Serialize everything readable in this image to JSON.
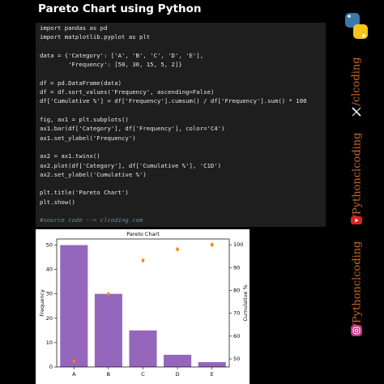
{
  "header": {
    "title": "Pareto Chart using Python"
  },
  "code": [
    [
      "import pandas as pd",
      "import matplotlib.pyplot as plt"
    ],
    [
      "data = {'Category': ['A', 'B', 'C', 'D', 'E'],",
      "        'Frequency': [50, 30, 15, 5, 2]}"
    ],
    [
      "df = pd.DataFrame(data)",
      "df = df.sort_values('Frequency', ascending=False)",
      "df['Cumulative %'] = df['Frequency'].cumsum() / df['Frequency'].sum() * 100"
    ],
    [
      "fig, ax1 = plt.subplots()",
      "ax1.bar(df['Category'], df['Frequency'], color='C4')",
      "ax1.set_ylabel('Frequency')"
    ],
    [
      "ax2 = ax1.twinx()",
      "ax2.plot(df['Category'], df['Cumulative %'], 'C1D')",
      "ax2.set_ylabel('Cumulative %')"
    ],
    [
      "plt.title('Pareto Chart')",
      "plt.show()"
    ],
    [
      "#source code --> clcoding.com"
    ]
  ],
  "sidebar": [
    "/clcoding",
    "/Pythonclcoding",
    "/Pythonclcoding"
  ],
  "chart_data": {
    "type": "bar",
    "title": "Pareto Chart",
    "categories": [
      "A",
      "B",
      "C",
      "D",
      "E"
    ],
    "ylabel": "Frequency",
    "y2label": "Cumulative %",
    "series": [
      {
        "name": "Frequency",
        "type": "bar",
        "color": "#9467bd",
        "values": [
          50,
          30,
          15,
          5,
          2
        ]
      },
      {
        "name": "Cumulative %",
        "type": "scatter",
        "axis": "y2",
        "color": "#ff7f0e",
        "values": [
          49.02,
          78.43,
          93.14,
          98.04,
          100
        ]
      }
    ],
    "ylim": [
      0,
      52.5
    ],
    "yticks": [
      0,
      10,
      20,
      30,
      40,
      50
    ],
    "y2lim": [
      46.47,
      102.55
    ],
    "y2ticks": [
      50,
      60,
      70,
      80,
      90,
      100
    ]
  }
}
